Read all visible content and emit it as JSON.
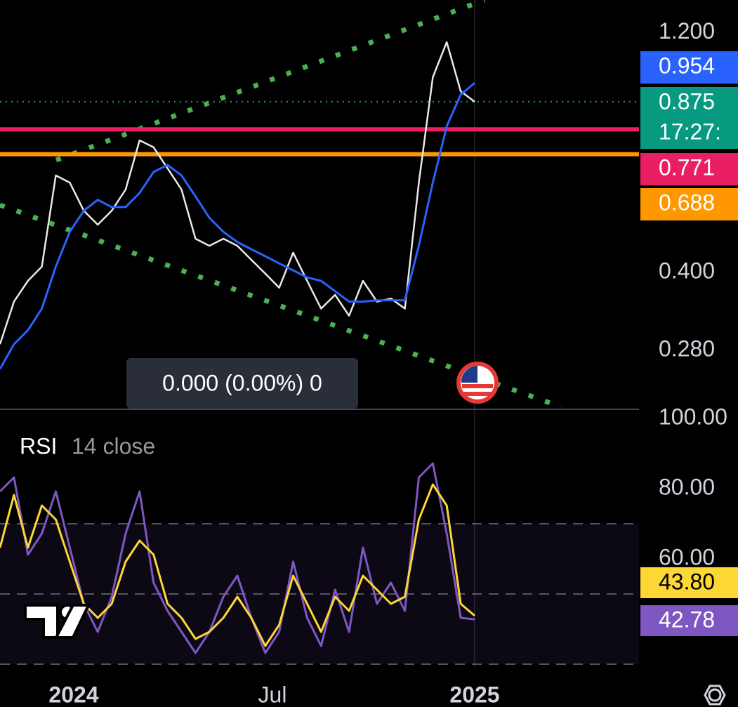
{
  "price_panel": {
    "scale": "log",
    "ylim": [
      0.2136,
      1.395
    ],
    "yticks": [
      {
        "value": 1.2,
        "label": "1.200"
      },
      {
        "value": 0.4,
        "label": "0.400"
      },
      {
        "value": 0.28,
        "label": "0.280"
      }
    ],
    "series": [
      {
        "color": "#e8e8e8",
        "values": [
          0.288,
          0.35,
          0.385,
          0.411,
          0.624,
          0.604,
          0.531,
          0.498,
          0.531,
          0.585,
          0.733,
          0.71,
          0.645,
          0.585,
          0.467,
          0.452,
          0.467,
          0.452,
          0.424,
          0.398,
          0.373,
          0.438,
          0.385,
          0.339,
          0.361,
          0.328,
          0.385,
          0.35,
          0.355,
          0.339,
          0.604,
          0.979,
          1.15,
          0.918,
          0.875
        ]
      },
      {
        "color": "#2962ff",
        "values": [
          0.257,
          0.288,
          0.307,
          0.339,
          0.411,
          0.482,
          0.531,
          0.558,
          0.54,
          0.54,
          0.576,
          0.634,
          0.655,
          0.624,
          0.567,
          0.514,
          0.482,
          0.46,
          0.445,
          0.431,
          0.417,
          0.404,
          0.391,
          0.385,
          0.367,
          0.35,
          0.35,
          0.352,
          0.352,
          0.352,
          0.452,
          0.604,
          0.782,
          0.904,
          0.954
        ]
      }
    ],
    "badges": [
      {
        "value": 0.954,
        "color": "#2962ff"
      },
      {
        "value": 0.875,
        "color": "#089981",
        "line": "dotted"
      },
      {
        "value": 0.771,
        "color": "#e91e63",
        "line": "solid"
      },
      {
        "value": 0.688,
        "color": "#ff9800",
        "line": "solid"
      }
    ],
    "countdown": "17:27:",
    "tooltip": "0.000 (0.00%) 0"
  },
  "rsi_panel": {
    "title": "RSI",
    "subtitle": "14 close",
    "ylim": [
      29.2,
      101.2
    ],
    "yticks": [
      {
        "value": 100,
        "label": "100.00"
      },
      {
        "value": 80,
        "label": "80.00"
      },
      {
        "value": 60,
        "label": "60.00"
      }
    ],
    "bands": [
      30,
      50,
      70
    ],
    "series": [
      {
        "color": "#7e57c2",
        "values": [
          79.2,
          83.2,
          61.2,
          67.2,
          79.2,
          63.2,
          47.2,
          39.2,
          49.2,
          67.2,
          79.2,
          53.2,
          45.2,
          39.2,
          33.2,
          39.2,
          49.2,
          55.2,
          43.2,
          33.2,
          39.2,
          59.2,
          43.2,
          35.2,
          51.2,
          39.2,
          63.2,
          47.2,
          53.2,
          45.2,
          83.2,
          87.2,
          67.2,
          43.2,
          42.78
        ]
      },
      {
        "color": "#fdd835",
        "values": [
          63.2,
          78.2,
          63.2,
          75.2,
          71.2,
          59.2,
          47.2,
          43.2,
          47.2,
          59.2,
          65.2,
          61.2,
          47.2,
          43.2,
          37.2,
          39.2,
          43.2,
          49.2,
          43.2,
          35.2,
          41.2,
          55.2,
          47.2,
          39.2,
          49.2,
          45.2,
          55.2,
          51.2,
          47.2,
          49.2,
          71.2,
          81.2,
          75.2,
          47.2,
          43.8
        ]
      }
    ],
    "badges": [
      {
        "value": 43.8,
        "label": "43.80",
        "color": "#fdd835"
      },
      {
        "value": 42.78,
        "color": "#7e57c2"
      }
    ]
  },
  "time_axis": {
    "labels": [
      "2024",
      "Jul",
      "2025"
    ]
  }
}
